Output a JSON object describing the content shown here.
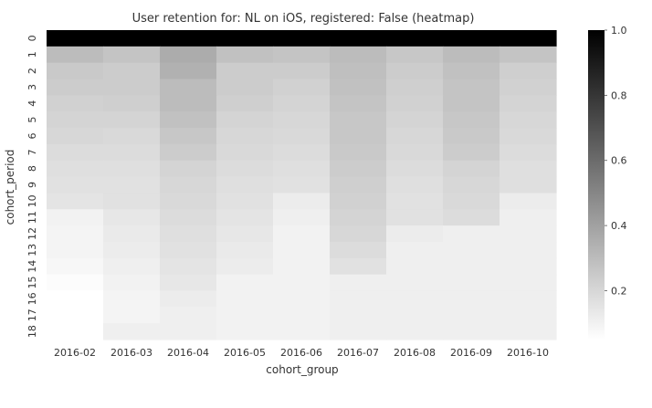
{
  "chart_data": {
    "type": "heatmap",
    "title": "User retention for: NL on iOS, registered: False (heatmap)",
    "xlabel": "cohort_group",
    "ylabel": "cohort_period",
    "x_categories": [
      "2016-02",
      "2016-03",
      "2016-04",
      "2016-05",
      "2016-06",
      "2016-07",
      "2016-08",
      "2016-09",
      "2016-10"
    ],
    "y_categories": [
      "0",
      "1",
      "2",
      "3",
      "4",
      "5",
      "6",
      "7",
      "8",
      "9",
      "10",
      "11",
      "12",
      "13",
      "14",
      "15",
      "16",
      "17",
      "18"
    ],
    "y_tick_labels": [
      "0",
      "1",
      "2",
      "3",
      "4",
      "5",
      "6",
      "7",
      "8",
      "9",
      "10",
      "11",
      "12",
      "13",
      "14",
      "15",
      "16",
      "17",
      "18"
    ],
    "values": [
      [
        1.0,
        1.0,
        1.0,
        1.0,
        1.0,
        1.0,
        1.0,
        1.0,
        1.0
      ],
      [
        0.3,
        0.27,
        0.36,
        0.28,
        0.27,
        0.3,
        0.26,
        0.3,
        0.27
      ],
      [
        0.25,
        0.24,
        0.34,
        0.24,
        0.24,
        0.29,
        0.24,
        0.28,
        0.23
      ],
      [
        0.24,
        0.24,
        0.3,
        0.24,
        0.22,
        0.28,
        0.23,
        0.27,
        0.22
      ],
      [
        0.22,
        0.23,
        0.3,
        0.23,
        0.21,
        0.27,
        0.22,
        0.27,
        0.21
      ],
      [
        0.21,
        0.21,
        0.28,
        0.21,
        0.2,
        0.26,
        0.21,
        0.26,
        0.2
      ],
      [
        0.2,
        0.19,
        0.26,
        0.2,
        0.19,
        0.26,
        0.2,
        0.25,
        0.19
      ],
      [
        0.18,
        0.18,
        0.24,
        0.19,
        0.18,
        0.25,
        0.19,
        0.24,
        0.18
      ],
      [
        0.17,
        0.17,
        0.21,
        0.18,
        0.17,
        0.24,
        0.18,
        0.21,
        0.17
      ],
      [
        0.16,
        0.16,
        0.2,
        0.17,
        0.16,
        0.23,
        0.17,
        0.2,
        0.17
      ],
      [
        0.15,
        0.16,
        0.19,
        0.16,
        0.12,
        0.22,
        0.16,
        0.19,
        0.12
      ],
      [
        0.1,
        0.14,
        0.18,
        0.15,
        0.11,
        0.21,
        0.16,
        0.18,
        0.11
      ],
      [
        0.09,
        0.13,
        0.17,
        0.14,
        0.1,
        0.2,
        0.12,
        0.11,
        0.11
      ],
      [
        0.09,
        0.12,
        0.16,
        0.13,
        0.1,
        0.18,
        0.11,
        0.11,
        0.11
      ],
      [
        0.08,
        0.11,
        0.15,
        0.12,
        0.1,
        0.16,
        0.11,
        0.11,
        0.11
      ],
      [
        0.06,
        0.1,
        0.14,
        0.1,
        0.1,
        0.11,
        0.11,
        0.11,
        0.11
      ],
      [
        0.05,
        0.09,
        0.12,
        0.1,
        0.1,
        0.11,
        0.11,
        0.11,
        0.11
      ],
      [
        0.05,
        0.09,
        0.11,
        0.1,
        0.1,
        0.11,
        0.11,
        0.11,
        0.11
      ],
      [
        0.05,
        0.11,
        0.11,
        0.1,
        0.1,
        0.11,
        0.11,
        0.11,
        0.11
      ]
    ],
    "colormap": [
      "#ffffff",
      "#000000"
    ],
    "vmin": 0.05,
    "vmax": 1.0,
    "colorbar_ticks": [
      0.2,
      0.4,
      0.6,
      0.8,
      1.0
    ],
    "colorbar_tick_labels": [
      "0.2",
      "0.4",
      "0.6",
      "0.8",
      "1.0"
    ],
    "grid": false,
    "legend": "colorbar-right"
  }
}
